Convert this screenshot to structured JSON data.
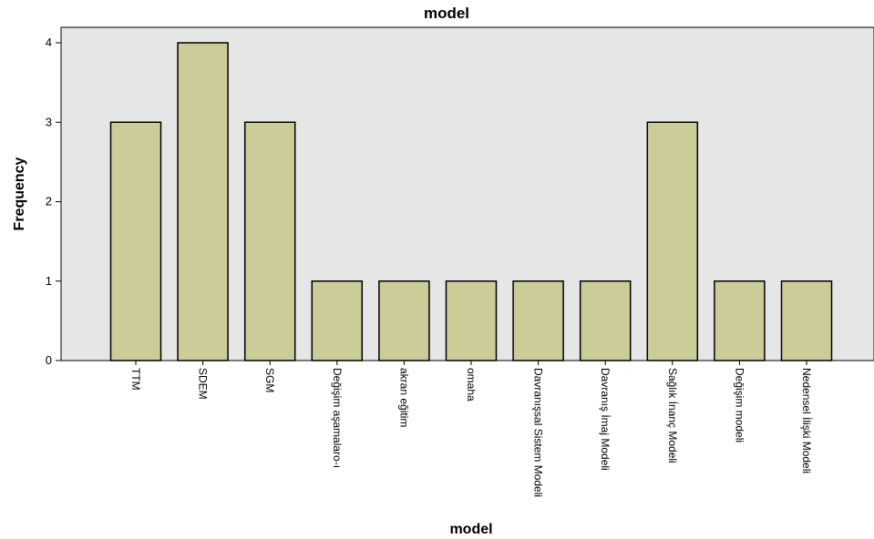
{
  "chart_data": {
    "type": "bar",
    "title": "model",
    "xlabel": "model",
    "ylabel": "Frequency",
    "categories": [
      "TTM",
      "SDEM",
      "SGM",
      "Değişim aşamalaro-ı",
      "akran eğitim",
      "omaha",
      "Davranışsal Sistem Modeli",
      "Davranış İmaj Modeli",
      "Sağlık İnanç Modeli",
      "Değişim modeli",
      "Nedensel İlişki Modeli"
    ],
    "values": [
      3,
      4,
      3,
      1,
      1,
      1,
      1,
      1,
      3,
      1,
      1
    ],
    "ylim": [
      0,
      4
    ],
    "yticks": [
      0,
      1,
      2,
      3,
      4
    ],
    "grid": false,
    "colors": {
      "plot_background": "#e6e6e6",
      "bar_fill": "#cccc99",
      "bar_stroke": "#000000"
    }
  }
}
